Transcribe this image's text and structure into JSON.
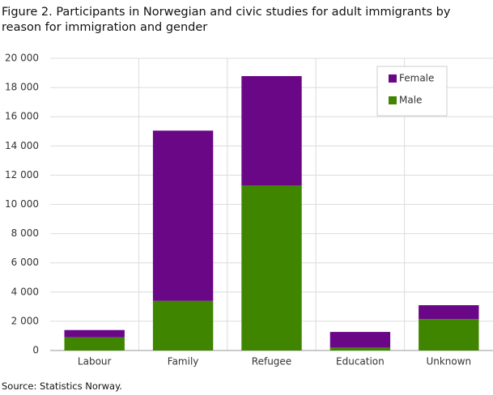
{
  "chart_data": {
    "type": "stacked_bar",
    "title": "Figure 2. Participants in Norwegian and civic studies for adult immigrants by reason for immigration and gender",
    "source": "Source: Statistics Norway.",
    "categories": [
      "Labour",
      "Family",
      "Refugee",
      "Education",
      "Unknown"
    ],
    "series": [
      {
        "name": "Male",
        "color": "#3f8500",
        "values": [
          900,
          3400,
          11300,
          200,
          2150
        ]
      },
      {
        "name": "Female",
        "color": "#6a0787",
        "values": [
          500,
          11650,
          7480,
          1070,
          950
        ]
      }
    ],
    "ylim": [
      0,
      20000
    ],
    "yticks": [
      0,
      {
        "value": 2000,
        "label": "2 000"
      },
      {
        "value": 4000,
        "label": "4 000"
      },
      {
        "value": 6000,
        "label": "6 000"
      },
      {
        "value": 8000,
        "label": "8 000"
      },
      {
        "value": 10000,
        "label": "10 000"
      },
      {
        "value": 12000,
        "label": "12 000"
      },
      {
        "value": 14000,
        "label": "14 000"
      },
      {
        "value": 16000,
        "label": "16 000"
      },
      {
        "value": 18000,
        "label": "18 000"
      },
      {
        "value": 20000,
        "label": "20 000"
      }
    ],
    "grid": true,
    "legend": "top-right"
  }
}
